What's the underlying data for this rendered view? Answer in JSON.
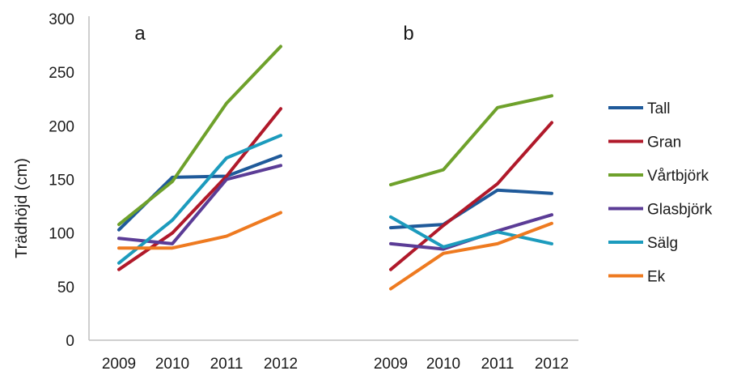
{
  "chart_data": {
    "type": "line",
    "ylabel": "Trädhöjd (cm)",
    "ylim": [
      0,
      300
    ],
    "yticks": [
      0,
      50,
      100,
      150,
      200,
      250,
      300
    ],
    "categories": [
      "2009",
      "2010",
      "2011",
      "2012"
    ],
    "grid": false,
    "legend_position": "right",
    "series_styles": [
      {
        "name": "Tall",
        "color": "#1f5a9a"
      },
      {
        "name": "Gran",
        "color": "#b0192a"
      },
      {
        "name": "Vårtbjörk",
        "color": "#6ea12b"
      },
      {
        "name": "Glasbjörk",
        "color": "#5b3c96"
      },
      {
        "name": "Sälg",
        "color": "#1c9bbd"
      },
      {
        "name": "Ek",
        "color": "#ee7a20"
      }
    ],
    "panels": [
      {
        "label": "a",
        "series": [
          {
            "name": "Tall",
            "values": [
              103,
              152,
              153,
              172
            ]
          },
          {
            "name": "Gran",
            "values": [
              66,
              100,
              153,
              216
            ]
          },
          {
            "name": "Vårtbjörk",
            "values": [
              108,
              148,
              221,
              274
            ]
          },
          {
            "name": "Glasbjörk",
            "values": [
              95,
              90,
              150,
              163
            ]
          },
          {
            "name": "Sälg",
            "values": [
              72,
              112,
              170,
              191
            ]
          },
          {
            "name": "Ek",
            "values": [
              86,
              86,
              97,
              119
            ]
          }
        ]
      },
      {
        "label": "b",
        "series": [
          {
            "name": "Tall",
            "values": [
              105,
              108,
              140,
              137
            ]
          },
          {
            "name": "Gran",
            "values": [
              66,
              107,
              146,
              203
            ]
          },
          {
            "name": "Vårtbjörk",
            "values": [
              145,
              159,
              217,
              228
            ]
          },
          {
            "name": "Glasbjörk",
            "values": [
              90,
              85,
              102,
              117
            ]
          },
          {
            "name": "Sälg",
            "values": [
              115,
              87,
              101,
              90
            ]
          },
          {
            "name": "Ek",
            "values": [
              48,
              81,
              90,
              109
            ]
          }
        ]
      }
    ]
  }
}
